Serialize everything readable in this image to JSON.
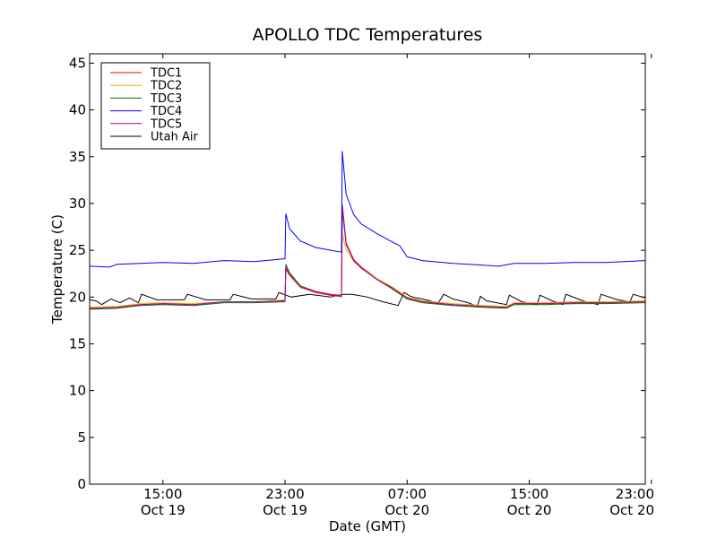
{
  "chart_data": {
    "type": "line",
    "title": "APOLLO TDC Temperatures",
    "xlabel": "Date (GMT)",
    "ylabel": "Temperature (C)",
    "xlim": [
      10.2,
      46.6
    ],
    "ylim": [
      0,
      46
    ],
    "yticks": [
      0,
      5,
      10,
      15,
      20,
      25,
      30,
      35,
      40,
      45
    ],
    "xticks": [
      {
        "x": 15,
        "line1": "15:00",
        "line2": "Oct 19"
      },
      {
        "x": 23,
        "line1": "23:00",
        "line2": "Oct 19"
      },
      {
        "x": 31,
        "line1": "07:00",
        "line2": "Oct 20"
      },
      {
        "x": 39,
        "line1": "15:00",
        "line2": "Oct 20"
      },
      {
        "x": 47,
        "line1": "23:00",
        "line2": "Oct 20"
      }
    ],
    "legend_position": "top-left",
    "series": [
      {
        "name": "TDC1",
        "color": "#ff0000",
        "x": [
          10.2,
          12,
          13.5,
          15,
          17,
          19,
          21,
          23,
          23.05,
          23.3,
          24,
          25,
          26,
          26.7,
          26.75,
          27,
          27.5,
          28,
          29,
          30,
          31,
          32,
          34,
          36,
          37.5,
          38,
          40,
          42,
          44,
          46.6
        ],
        "y": [
          18.8,
          18.9,
          19.2,
          19.3,
          19.2,
          19.5,
          19.5,
          19.6,
          23.2,
          22.5,
          21.2,
          20.6,
          20.3,
          20.2,
          29.8,
          25.8,
          24.0,
          23.2,
          22.0,
          21.0,
          19.9,
          19.5,
          19.2,
          19.0,
          18.9,
          19.3,
          19.3,
          19.4,
          19.4,
          19.5
        ]
      },
      {
        "name": "TDC2",
        "color": "#ffaa00",
        "x": [
          10.2,
          12,
          13.5,
          15,
          17,
          19,
          21,
          23,
          23.05,
          23.3,
          24,
          25,
          26,
          26.7,
          26.75,
          27,
          27.5,
          28,
          29,
          30,
          31,
          32,
          34,
          36,
          37.5,
          38,
          40,
          42,
          44,
          46.6
        ],
        "y": [
          18.9,
          19.0,
          19.3,
          19.4,
          19.3,
          19.5,
          19.5,
          19.7,
          23.0,
          22.3,
          21.0,
          20.5,
          20.2,
          20.0,
          26.8,
          25.0,
          23.8,
          23.1,
          22.0,
          21.1,
          20.0,
          19.6,
          19.3,
          19.1,
          19.0,
          19.4,
          19.4,
          19.5,
          19.5,
          19.6
        ]
      },
      {
        "name": "TDC3",
        "color": "#007700",
        "x": [
          10.2,
          12,
          13.5,
          15,
          17,
          19,
          21,
          23,
          23.05,
          23.3,
          24,
          25,
          26,
          26.7,
          26.75,
          27,
          27.5,
          28,
          29,
          30,
          31,
          32,
          34,
          36,
          37.5,
          38,
          40,
          42,
          44,
          46.6
        ],
        "y": [
          18.7,
          18.8,
          19.1,
          19.2,
          19.1,
          19.4,
          19.4,
          19.5,
          23.5,
          22.6,
          21.2,
          20.5,
          20.2,
          20.1,
          29.5,
          25.6,
          23.9,
          23.1,
          21.9,
          20.9,
          19.8,
          19.4,
          19.1,
          18.9,
          18.8,
          19.2,
          19.2,
          19.3,
          19.3,
          19.4
        ]
      },
      {
        "name": "TDC4",
        "color": "#0000ff",
        "x": [
          10.2,
          11.5,
          12,
          13.5,
          15,
          17,
          19,
          21,
          23,
          23.05,
          23.3,
          24,
          25,
          26,
          26.7,
          26.75,
          27,
          27.5,
          28,
          29,
          30,
          30.5,
          31,
          32,
          34,
          36,
          37,
          38,
          40,
          42,
          44,
          46.6
        ],
        "y": [
          23.3,
          23.2,
          23.5,
          23.6,
          23.7,
          23.6,
          23.9,
          23.8,
          24.1,
          28.9,
          27.3,
          26.0,
          25.3,
          25.0,
          24.8,
          35.6,
          31.0,
          28.8,
          27.8,
          26.8,
          25.9,
          25.5,
          24.3,
          23.9,
          23.6,
          23.4,
          23.3,
          23.6,
          23.6,
          23.7,
          23.7,
          23.9
        ]
      },
      {
        "name": "TDC5",
        "color": "#aa00aa",
        "x": [
          10.2,
          12,
          13.5,
          15,
          17,
          19,
          21,
          23,
          23.05,
          23.3,
          24,
          25,
          26,
          26.7,
          26.75,
          27,
          27.5,
          28,
          29,
          30,
          31,
          32,
          34,
          36,
          37.5,
          38,
          40,
          42,
          44,
          46.6
        ],
        "y": [
          18.8,
          18.9,
          19.2,
          19.3,
          19.2,
          19.5,
          19.5,
          19.6,
          23.0,
          22.4,
          21.1,
          20.5,
          20.2,
          20.1,
          29.9,
          25.7,
          23.9,
          23.1,
          21.9,
          21.0,
          19.9,
          19.5,
          19.2,
          19.0,
          18.9,
          19.3,
          19.3,
          19.4,
          19.4,
          19.5
        ]
      },
      {
        "name": "Utah Air",
        "color": "#000000",
        "x": [
          10.2,
          10.6,
          11.0,
          11.2,
          11.6,
          12.2,
          12.8,
          13.4,
          13.6,
          14.6,
          16.4,
          16.6,
          17.8,
          19.4,
          19.6,
          20.8,
          22.4,
          22.6,
          23.4,
          24.6,
          26.0,
          26.8,
          27.4,
          28.4,
          29.4,
          30.4,
          30.8,
          31.2,
          31.6,
          32.0,
          32.5,
          33.0,
          33.4,
          34.0,
          35.0,
          35.6,
          35.8,
          36.2,
          37.5,
          37.7,
          38.5,
          39.5,
          39.7,
          40.5,
          41.2,
          41.4,
          42.5,
          43.5,
          43.7,
          44.8,
          45.6,
          45.8,
          46.6
        ],
        "y": [
          19.7,
          19.6,
          19.2,
          19.4,
          19.8,
          19.4,
          19.9,
          19.4,
          20.3,
          19.7,
          19.7,
          20.3,
          19.7,
          19.7,
          20.3,
          19.8,
          19.8,
          20.5,
          20.0,
          20.3,
          20.0,
          20.3,
          20.3,
          20.0,
          19.5,
          19.1,
          20.5,
          20.1,
          19.9,
          19.8,
          19.6,
          19.3,
          20.3,
          19.8,
          19.4,
          19.0,
          20.1,
          19.6,
          19.2,
          20.2,
          19.5,
          19.2,
          20.2,
          19.6,
          19.2,
          20.3,
          19.6,
          19.2,
          20.3,
          19.7,
          19.5,
          20.3,
          19.9
        ]
      }
    ]
  }
}
